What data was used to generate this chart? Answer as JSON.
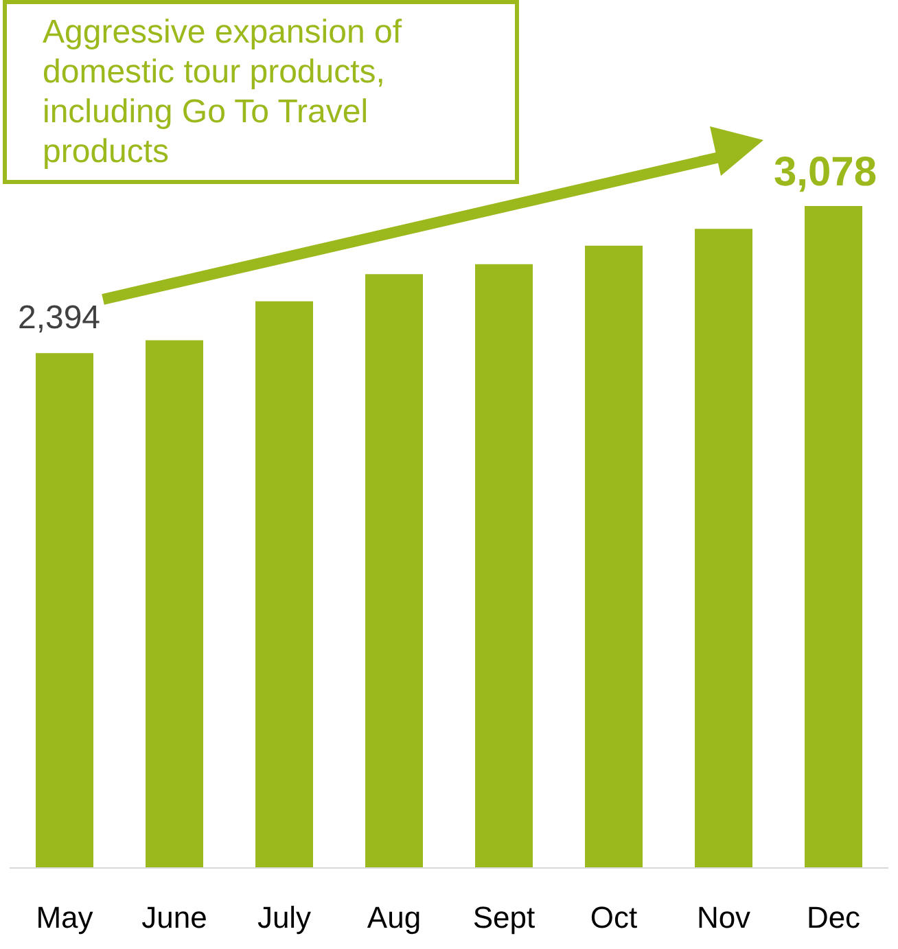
{
  "chart_data": {
    "type": "bar",
    "categories": [
      "May",
      "June",
      "July",
      "Aug",
      "Sept",
      "Oct",
      "Nov",
      "Dec"
    ],
    "values": [
      2394,
      2454,
      2635,
      2761,
      2807,
      2894,
      2972,
      3078
    ],
    "value_labels": [
      "2,394",
      null,
      null,
      null,
      null,
      null,
      null,
      "3,078"
    ],
    "color": "#9bb81c",
    "tick_labels": "x",
    "grid": false,
    "annotations": [
      "Aggressive expansion of domestic tour products, including Go To Travel products"
    ]
  }
}
